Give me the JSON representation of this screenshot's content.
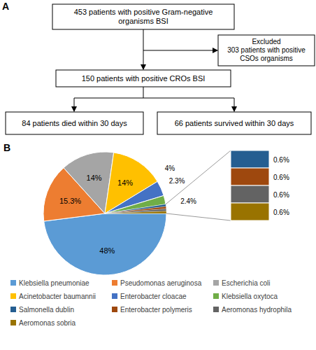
{
  "panels": [
    "A",
    "B"
  ],
  "diagram": {
    "nodes": [
      {
        "lines": [
          "453 patients with positive Gram-negative",
          "organisms BSI"
        ]
      },
      {
        "lines": [
          "Excluded",
          "303 patients with positive",
          "CSOs organisms"
        ]
      },
      {
        "lines": [
          "150 patients with positive CROs BSI"
        ]
      },
      {
        "lines": [
          "84 patients died within 30 days"
        ]
      },
      {
        "lines": [
          "66 patients survived within 30 days"
        ]
      }
    ]
  },
  "chart_data": {
    "type": "pie",
    "categories": [
      "Klebsiella pneumoniae",
      "Pseudomonas aeruginosa",
      "Escherichia coli",
      "Acinetobacter baumannii",
      "Enterobacter cloacae",
      "Klebsiella oxytoca",
      "Salmonella dublin",
      "Enterobacter polymeris",
      "Aeromonas hydrophila",
      "Aeromonas sobria"
    ],
    "values": [
      48,
      15.3,
      14,
      14,
      4,
      2.3,
      0.6,
      0.6,
      0.6,
      0.6
    ],
    "value_labels": [
      "48%",
      "15.3%",
      "14%",
      "14%",
      "4%",
      "2.3%",
      "0.6%",
      "0.6%",
      "0.6%",
      "0.6%"
    ],
    "colors": [
      "#5b9bd5",
      "#ed7d31",
      "#a5a5a5",
      "#ffc000",
      "#4472c4",
      "#70ad47",
      "#255e91",
      "#9e480e",
      "#636363",
      "#997300"
    ],
    "annotations": [
      "2.4%"
    ],
    "data_labels": true,
    "legend": "bottom"
  }
}
